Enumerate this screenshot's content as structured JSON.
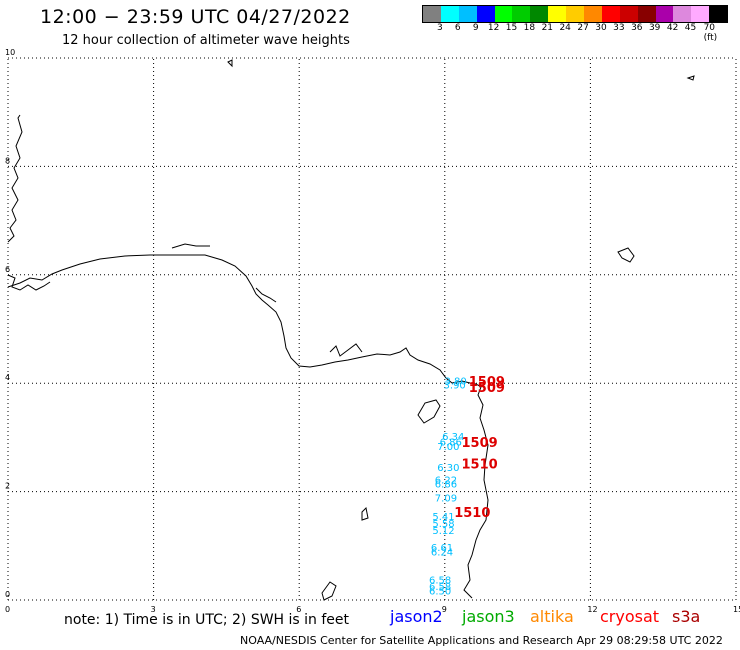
{
  "title": "12:00 − 23:59 UTC 04/27/2022",
  "subtitle": "12 hour collection of altimeter wave heights",
  "legend": {
    "colors": [
      "#808080",
      "#00ffff",
      "#00bfff",
      "#0000ff",
      "#00ff00",
      "#00cc00",
      "#008800",
      "#ffff00",
      "#ffcc00",
      "#ff8800",
      "#ff0000",
      "#cc0000",
      "#880000",
      "#aa00aa",
      "#dd88dd",
      "#ffaaff",
      "#000000"
    ],
    "tick_labels": [
      "3",
      "6",
      "9",
      "12",
      "15",
      "18",
      "21",
      "24",
      "27",
      "30",
      "33",
      "36",
      "39",
      "42",
      "45",
      "70 (ft)"
    ]
  },
  "axes": {
    "x_ticks": [
      "0",
      "3",
      "6",
      "9",
      "12",
      "15"
    ],
    "y_ticks": [
      "0",
      "2",
      "4",
      "6",
      "8",
      "10"
    ]
  },
  "swh_labels": {
    "color": "#00bfff",
    "items": [
      {
        "text": "3.80",
        "x": 9.2,
        "y": 3.98
      },
      {
        "text": "3.90",
        "x": 9.18,
        "y": 3.9
      },
      {
        "text": "6.34",
        "x": 9.15,
        "y": 2.95
      },
      {
        "text": "6.86",
        "x": 9.1,
        "y": 2.85
      },
      {
        "text": "7.00",
        "x": 9.05,
        "y": 2.77
      },
      {
        "text": "6.30",
        "x": 9.05,
        "y": 2.38
      },
      {
        "text": "6.22",
        "x": 9.0,
        "y": 2.15
      },
      {
        "text": "6.86",
        "x": 9.0,
        "y": 2.08
      },
      {
        "text": "7.09",
        "x": 9.0,
        "y": 1.82
      },
      {
        "text": "5.41",
        "x": 8.95,
        "y": 1.48
      },
      {
        "text": "5.58",
        "x": 8.95,
        "y": 1.35
      },
      {
        "text": "5.12",
        "x": 8.95,
        "y": 1.22
      },
      {
        "text": "6.61",
        "x": 8.92,
        "y": 0.9
      },
      {
        "text": "6.24",
        "x": 8.92,
        "y": 0.82
      },
      {
        "text": "6.58",
        "x": 8.88,
        "y": 0.3
      },
      {
        "text": "6.58",
        "x": 8.88,
        "y": 0.18
      },
      {
        "text": "6.50",
        "x": 8.88,
        "y": 0.1
      }
    ]
  },
  "time_labels": {
    "color": "#dd0000",
    "items": [
      {
        "text": "1509",
        "x": 9.7,
        "y": 3.95
      },
      {
        "text": "1509",
        "x": 9.7,
        "y": 3.84
      },
      {
        "text": "1509",
        "x": 9.55,
        "y": 2.82
      },
      {
        "text": "1510",
        "x": 9.55,
        "y": 2.43
      },
      {
        "text": "1510",
        "x": 9.4,
        "y": 1.53
      }
    ]
  },
  "note": "note:  1) Time is in UTC;  2) SWH is in feet",
  "satellites": [
    {
      "name": "jason2",
      "color": "#0000ff"
    },
    {
      "name": "jason3",
      "color": "#00aa00"
    },
    {
      "name": "altika",
      "color": "#ff8800"
    },
    {
      "name": "cryosat",
      "color": "#ff0000"
    },
    {
      "name": "s3a",
      "color": "#aa0000"
    }
  ],
  "footer": "NOAA/NESDIS Center for Satellite Applications and Research    Apr 29 08:29:58 UTC 2022"
}
